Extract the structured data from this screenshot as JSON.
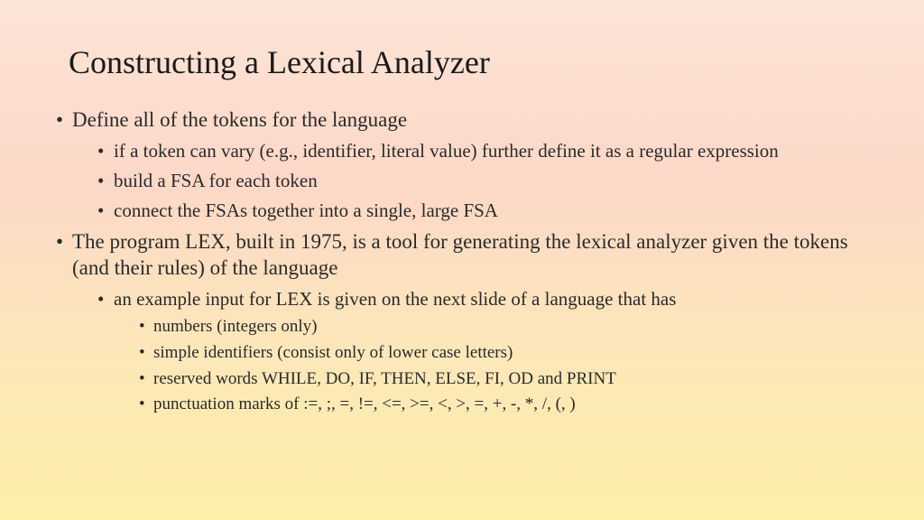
{
  "title": "Constructing a Lexical Analyzer",
  "bullets": [
    {
      "text": "Define all of the tokens for the language",
      "children": [
        {
          "text": "if a token can vary (e.g., identifier, literal value) further define it as a regular expression"
        },
        {
          "text": "build a FSA for each token"
        },
        {
          "text": "connect the FSAs together into a single, large FSA"
        }
      ]
    },
    {
      "text": "The program LEX, built in 1975, is a tool for generating the lexical analyzer given the tokens (and their rules) of the language",
      "children": [
        {
          "text": "an example input for LEX is given on the next slide of a language that has",
          "children": [
            {
              "text": "numbers (integers only)"
            },
            {
              "text": "simple identifiers (consist only of lower case letters)"
            },
            {
              "text": "reserved words WHILE, DO, IF, THEN, ELSE, FI, OD and PRINT"
            },
            {
              "text": "punctuation marks of :=, ;, =, !=, <=, >=, <, >, =, +, -, *, /, (, )"
            }
          ]
        }
      ]
    }
  ],
  "colors": {
    "text": "#2a2a2a",
    "gradient_top": "#fce4d6",
    "gradient_mid1": "#fcd8c8",
    "gradient_mid2": "#fce8b8",
    "gradient_bottom": "#fdeea8"
  },
  "typography": {
    "font_family": "Times New Roman",
    "title_fontsize": 36,
    "lvl1_fontsize": 23,
    "lvl2_fontsize": 21,
    "lvl3_fontsize": 19
  }
}
